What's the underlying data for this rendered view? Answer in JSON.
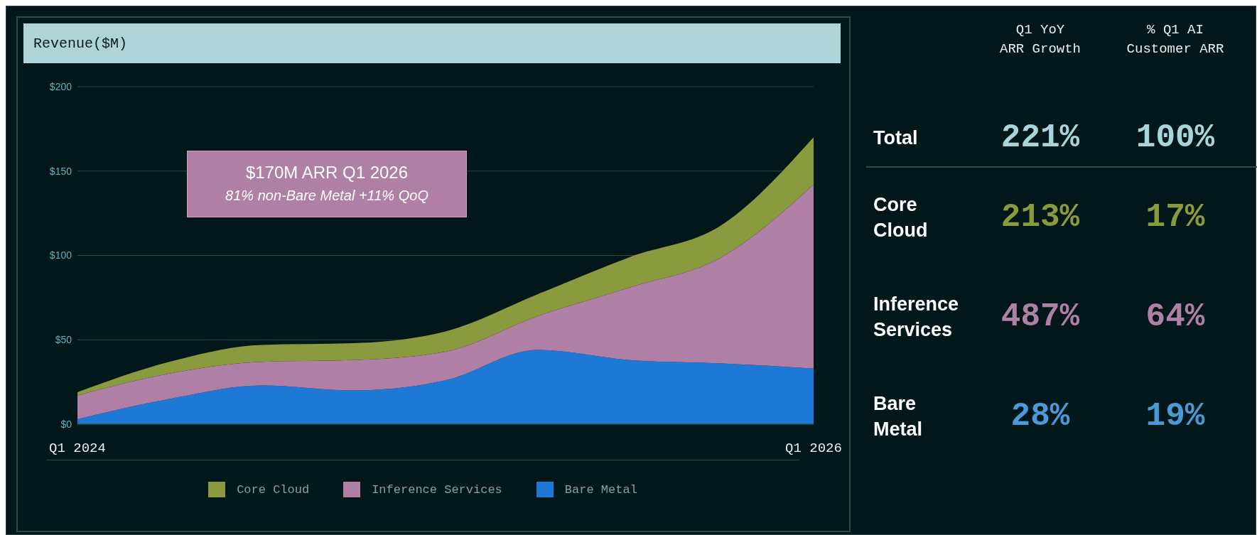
{
  "chart_data": [
    {
      "type": "area",
      "title": "Revenue($M)",
      "stacked": true,
      "categories": [
        "Q1 2024",
        null,
        null,
        null,
        null,
        null,
        null,
        null,
        "Q1 2026"
      ],
      "series": [
        {
          "name": "Bare Metal",
          "color": "#1e78d6",
          "values": [
            3,
            15,
            23,
            20,
            26,
            44,
            38,
            36,
            33
          ]
        },
        {
          "name": "Inference Services",
          "color": "#b07fa5",
          "values": [
            14,
            15,
            14,
            18,
            17,
            20,
            43,
            63,
            109
          ]
        },
        {
          "name": "Core Cloud",
          "color": "#8a9a3e",
          "values": [
            2,
            7,
            10,
            10,
            12,
            13,
            18,
            19,
            28
          ]
        }
      ],
      "ylim": [
        0,
        200
      ],
      "yticks": [
        {
          "value": 0,
          "label": "$0"
        },
        {
          "value": 50,
          "label": "$50"
        },
        {
          "value": 100,
          "label": "$100"
        },
        {
          "value": 150,
          "label": "$150"
        },
        {
          "value": 200,
          "label": "$200"
        }
      ],
      "grid": "y",
      "legend": "bottom",
      "annotations": [
        "$170M ARR Q1 2026",
        "81% non-Bare Metal +11% QoQ"
      ]
    },
    {
      "type": "other",
      "categories": [
        "Total",
        "Core Cloud",
        "Inference Services",
        "Bare Metal"
      ],
      "colors": [
        "#a8d4dc",
        "#8a9a3e",
        "#b07fa5",
        "#4a9ad8"
      ],
      "series": [
        {
          "name": "Q1 YoY ARR Growth",
          "values": [
            221,
            213,
            487,
            28
          ],
          "value_labels": [
            "221%",
            "213%",
            "487%",
            "28%"
          ]
        },
        {
          "name": "% Q1 AI Customer ARR",
          "values": [
            100,
            17,
            64,
            19
          ],
          "value_labels": [
            "100%",
            "17%",
            "64%",
            "19%"
          ]
        }
      ]
    }
  ]
}
